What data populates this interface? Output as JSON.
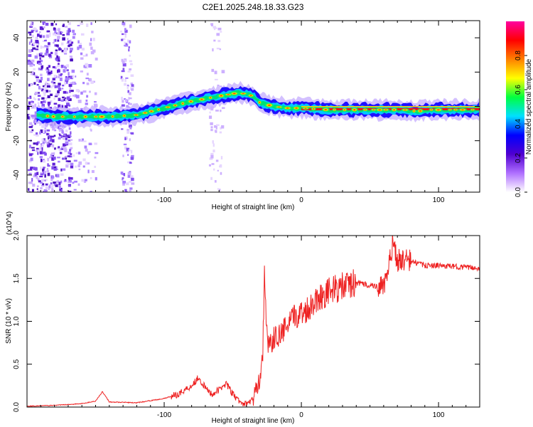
{
  "title": "C2E1.2025.248.18.33.G23",
  "chart_data": [
    {
      "type": "heatmap",
      "name": "spectrogram",
      "xlabel": "Height of straight line (km)",
      "ylabel": "Frequency (Hz)",
      "xlim": [
        -200,
        130
      ],
      "ylim": [
        -50,
        50
      ],
      "xticks": [
        -100,
        0,
        100
      ],
      "yticks": [
        -40,
        -20,
        0,
        20,
        40
      ],
      "colorbar": {
        "label": "Normalized spectral amplitude",
        "range": [
          0,
          1
        ],
        "ticks": [
          "0.0",
          "0.2",
          "0.4",
          "0.6",
          "0.8"
        ],
        "stops": [
          "#ffffff",
          "#b070ff",
          "#5000d0",
          "#0000ff",
          "#00e0ff",
          "#00ff40",
          "#ffff00",
          "#ff8000",
          "#ff0000",
          "#ff00a0"
        ]
      },
      "ridge": {
        "x": [
          -193,
          -180,
          -160,
          -140,
          -120,
          -100,
          -80,
          -60,
          -45,
          -35,
          -30,
          -20,
          -10,
          0,
          20,
          40,
          60,
          75,
          85,
          90,
          100,
          130
        ],
        "freq": [
          -5,
          -6,
          -6,
          -6,
          -5,
          -1,
          3,
          6,
          8,
          6,
          2,
          0,
          -1,
          -1,
          -2,
          -2,
          -2,
          -2,
          -3,
          -2,
          -2,
          -2
        ]
      }
    },
    {
      "type": "line",
      "name": "snr",
      "xlabel": "Height of straight line (km)",
      "ylabel": "SNR (10 * v/v)",
      "scale_label": "(x10^4)",
      "xlim": [
        -200,
        130
      ],
      "ylim": [
        0,
        2.0
      ],
      "xticks": [
        -100,
        0,
        100
      ],
      "yticks": [
        "0.0",
        "0.5",
        "1.0",
        "1.5",
        "2.0"
      ],
      "color": "#ee2222",
      "series": [
        {
          "name": "SNR",
          "x": [
            -200,
            -180,
            -160,
            -150,
            -145,
            -140,
            -120,
            -100,
            -90,
            -80,
            -75,
            -70,
            -65,
            -60,
            -55,
            -50,
            -45,
            -40,
            -35,
            -30,
            -28,
            -27,
            -25,
            -22,
            -20,
            -15,
            -10,
            -5,
            0,
            5,
            10,
            20,
            30,
            40,
            50,
            60,
            63,
            67,
            70,
            75,
            80,
            90,
            100,
            110,
            120,
            130
          ],
          "values": [
            0.01,
            0.02,
            0.04,
            0.07,
            0.18,
            0.06,
            0.05,
            0.1,
            0.15,
            0.25,
            0.35,
            0.22,
            0.15,
            0.2,
            0.28,
            0.15,
            0.06,
            0.03,
            0.1,
            0.35,
            0.65,
            1.72,
            0.78,
            0.74,
            0.8,
            0.85,
            0.95,
            1.05,
            1.1,
            1.15,
            1.25,
            1.35,
            1.4,
            1.45,
            1.42,
            1.4,
            1.55,
            1.95,
            1.7,
            1.72,
            1.7,
            1.65,
            1.65,
            1.64,
            1.63,
            1.62
          ]
        }
      ]
    }
  ]
}
